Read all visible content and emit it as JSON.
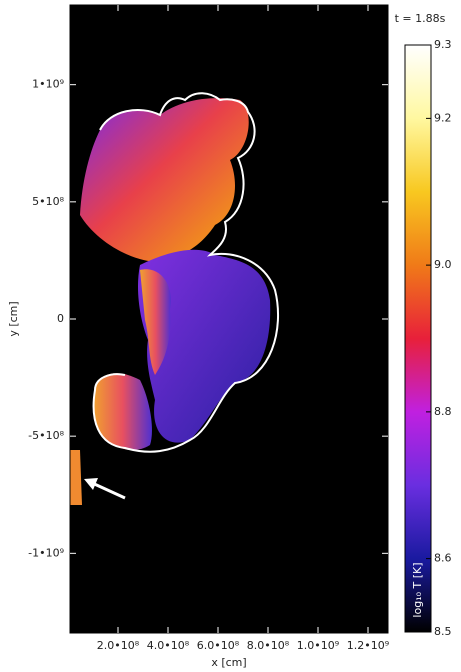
{
  "chart_data": {
    "type": "heatmap",
    "annotation": "t =  1.88s",
    "xlabel": "x [cm]",
    "ylabel": "y [cm]",
    "colorbar_label": "log₁₀ T [K]",
    "xlim": [
      8000000,
      1280000000
    ],
    "ylim": [
      -1340000000,
      1340000000
    ],
    "xticks": [
      {
        "value": 200000000,
        "label": "2.0•10⁸"
      },
      {
        "value": 400000000,
        "label": "4.0•10⁸"
      },
      {
        "value": 600000000,
        "label": "6.0•10⁸"
      },
      {
        "value": 800000000,
        "label": "8.0•10⁸"
      },
      {
        "value": 1000000000,
        "label": "1.0•10⁹"
      },
      {
        "value": 1200000000,
        "label": "1.2•10⁹"
      }
    ],
    "yticks": [
      {
        "value": 1000000000,
        "label": "1•10⁹"
      },
      {
        "value": 500000000,
        "label": "5•10⁸"
      },
      0,
      {
        "value": -500000000,
        "label": "-5•10⁸"
      },
      {
        "value": -1000000000,
        "label": "-1•10⁹"
      }
    ],
    "clim": [
      8.5,
      9.3
    ],
    "cticks": [
      8.5,
      8.6,
      8.8,
      {
        "value": 9,
        "label": "9.0"
      },
      9.2,
      9.3
    ],
    "colormap": [
      "#000000",
      "#1a1aa0",
      "#6a2ee0",
      "#c020e0",
      "#e8203a",
      "#f07a18",
      "#f8c820",
      "#fff8a0",
      "#ffffff"
    ]
  }
}
